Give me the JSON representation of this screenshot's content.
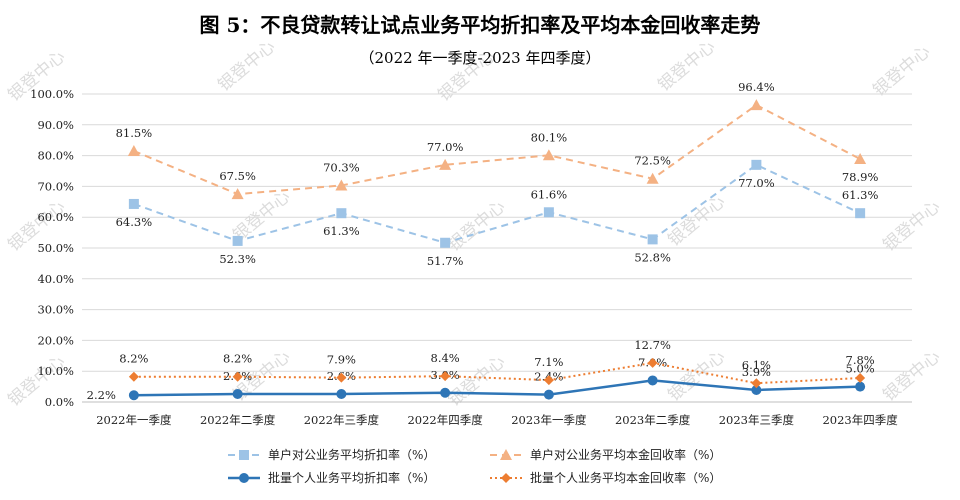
{
  "chart_data": {
    "type": "line",
    "title": "图 5：不良贷款转让试点业务平均折扣率及平均本金回收率走势",
    "subtitle": "（2022 年一季度-2023 年四季度）",
    "categories": [
      "2022年一季度",
      "2022年二季度",
      "2022年三季度",
      "2022年四季度",
      "2023年一季度",
      "2023年二季度",
      "2023年三季度",
      "2023年四季度"
    ],
    "ylim": [
      0,
      100
    ],
    "yticks": [
      0,
      10,
      20,
      30,
      40,
      50,
      60,
      70,
      80,
      90,
      100
    ],
    "ytick_labels": [
      "0.0%",
      "10.0%",
      "20.0%",
      "30.0%",
      "40.0%",
      "50.0%",
      "60.0%",
      "70.0%",
      "80.0%",
      "90.0%",
      "100.0%"
    ],
    "grid": true,
    "legend_position": "bottom",
    "series": [
      {
        "name": "单户对公业务平均折扣率（%）",
        "color": "#9dc3e6",
        "style": "dashed",
        "marker": "square",
        "values": [
          64.3,
          52.3,
          61.3,
          51.7,
          61.6,
          52.8,
          77.0,
          61.3
        ],
        "labels": [
          "64.3%",
          "52.3%",
          "61.3%",
          "51.7%",
          "61.6%",
          "52.8%",
          "77.0%",
          "61.3%"
        ],
        "label_pos": [
          "below",
          "below",
          "below",
          "below",
          "above",
          "below",
          "below",
          "above"
        ]
      },
      {
        "name": "单户对公业务平均本金回收率（%）",
        "color": "#f4b183",
        "style": "dashed",
        "marker": "triangle",
        "values": [
          81.5,
          67.5,
          70.3,
          77.0,
          80.1,
          72.5,
          96.4,
          78.9
        ],
        "labels": [
          "81.5%",
          "67.5%",
          "70.3%",
          "77.0%",
          "80.1%",
          "72.5%",
          "96.4%",
          "78.9%"
        ],
        "label_pos": [
          "above",
          "above",
          "above",
          "above",
          "above",
          "above",
          "above",
          "below"
        ]
      },
      {
        "name": "批量个人业务平均折扣率（%）",
        "color": "#2e75b6",
        "style": "solid",
        "marker": "circle",
        "values": [
          2.2,
          2.6,
          2.6,
          3.0,
          2.4,
          7.0,
          3.9,
          5.0
        ],
        "labels": [
          "2.2%",
          "2.6%",
          "2.6%",
          "3.0%",
          "2.4%",
          "7.0%",
          "3.9%",
          "5.0%"
        ],
        "label_pos": [
          "left",
          "above",
          "above",
          "above",
          "above",
          "above",
          "above",
          "above"
        ]
      },
      {
        "name": "批量个人业务平均本金回收率（%）",
        "color": "#ed7d31",
        "style": "dotted",
        "marker": "diamond",
        "values": [
          8.2,
          8.2,
          7.9,
          8.4,
          7.1,
          12.7,
          6.1,
          7.8
        ],
        "labels": [
          "8.2%",
          "8.2%",
          "7.9%",
          "8.4%",
          "7.1%",
          "12.7%",
          "6.1%",
          "7.8%"
        ],
        "label_pos": [
          "above",
          "above",
          "above",
          "above",
          "above",
          "above",
          "above",
          "above"
        ]
      }
    ]
  },
  "watermark": "银登中心"
}
